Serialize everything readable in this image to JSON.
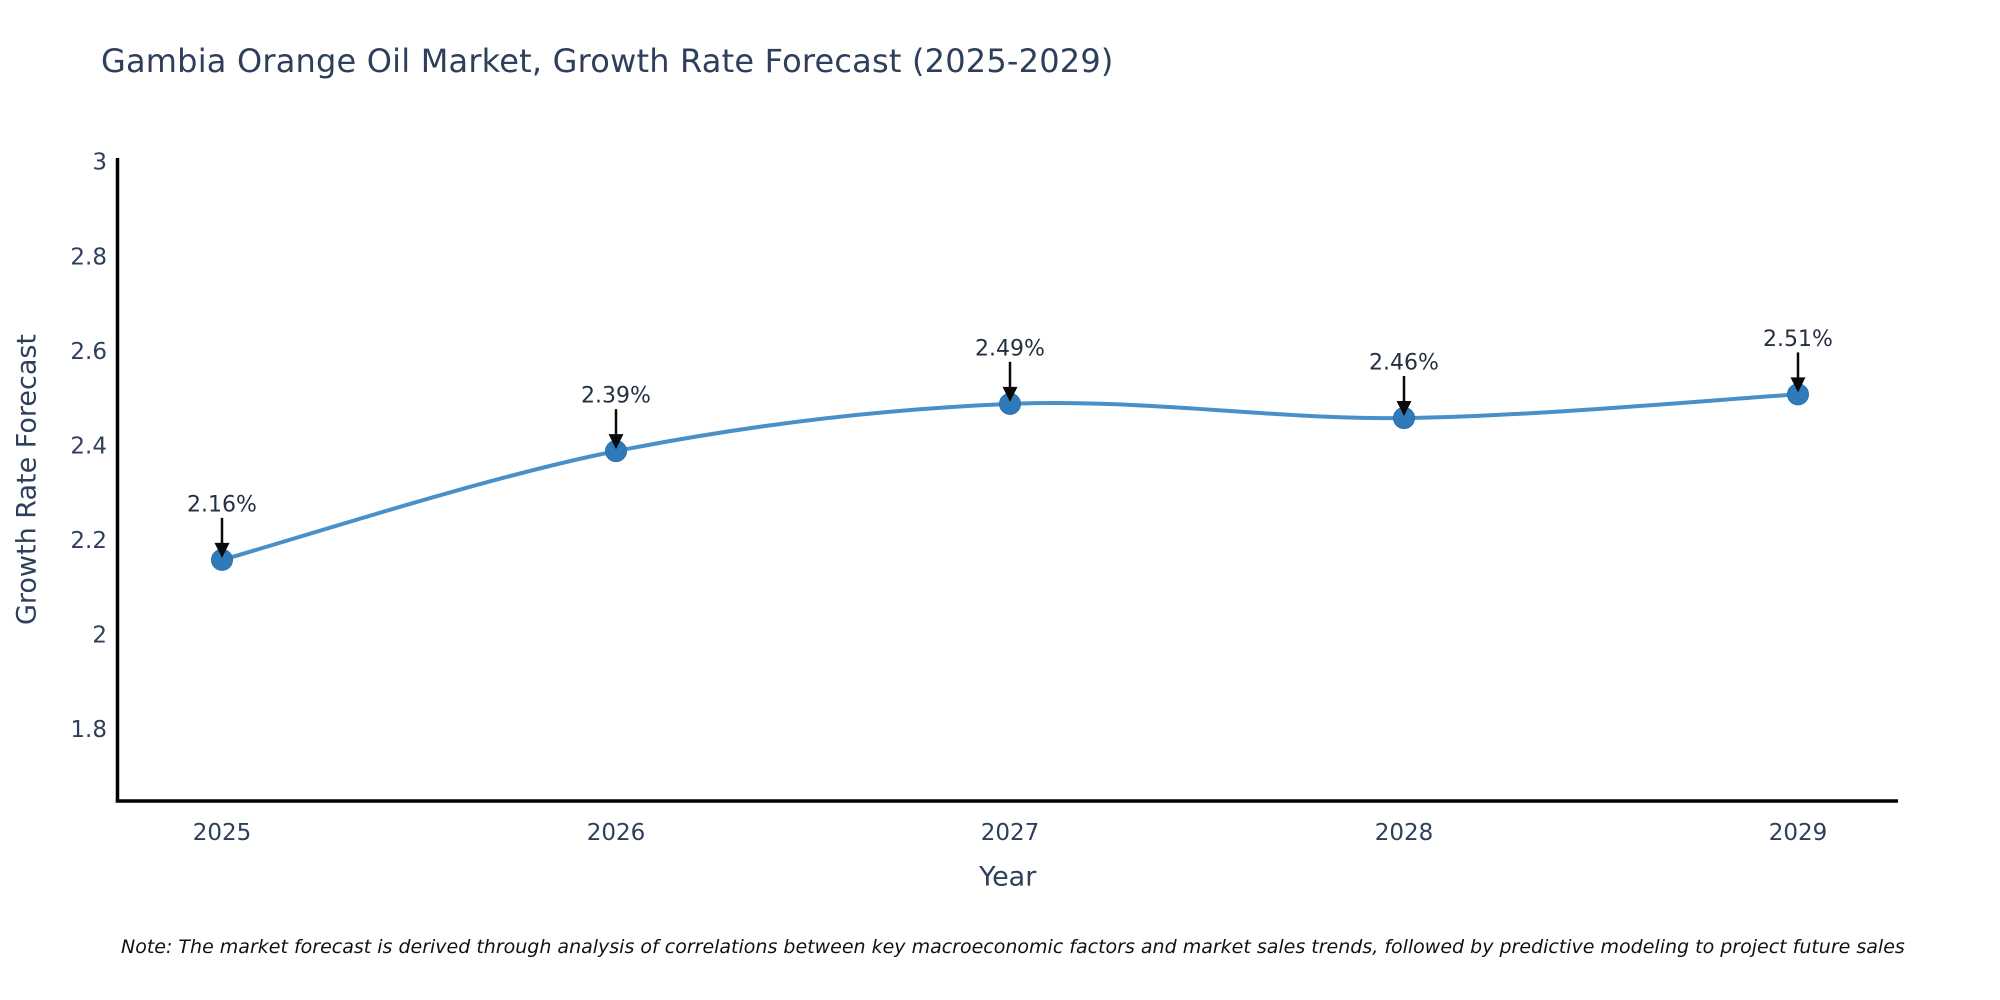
{
  "title": "Gambia Orange Oil Market, Growth Rate Forecast (2025-2029)",
  "note": "Note: The market forecast is derived through analysis of correlations between key macroeconomic factors and market sales trends, followed by predictive modeling to project future sales",
  "chart_data": {
    "type": "line",
    "title": "Gambia Orange Oil Market, Growth Rate Forecast (2025-2029)",
    "x": [
      2025,
      2026,
      2027,
      2028,
      2029
    ],
    "series": [
      {
        "name": "Growth Rate Forecast",
        "values": [
          2.16,
          2.39,
          2.49,
          2.46,
          2.51
        ]
      }
    ],
    "point_labels": [
      "2.16%",
      "2.39%",
      "2.49%",
      "2.46%",
      "2.51%"
    ],
    "xlabel": "Year",
    "ylabel": "Growth Rate Forecast",
    "xticks": [
      "2025",
      "2026",
      "2027",
      "2028",
      "2029"
    ],
    "yticks": [
      3,
      2.8,
      2.6,
      2.4,
      2.2,
      2,
      1.8
    ],
    "ylim": [
      1.65,
      3.01
    ],
    "grid": false,
    "legend": "none",
    "line_shape": "spline",
    "markers": true,
    "annotation_arrows": true,
    "colors": {
      "line": "#4a90c8",
      "marker": "#2f7ab8",
      "marker_edge": "#2b6da9",
      "axis": "#000000",
      "tick_text": "#2e3f5c",
      "annotation_text": "#243142",
      "arrow": "#0a0a0a"
    }
  }
}
